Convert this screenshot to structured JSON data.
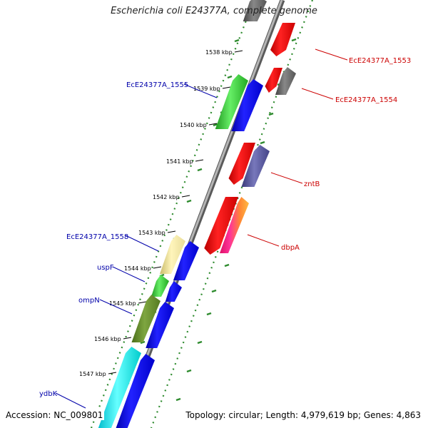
{
  "title": "Escherichia coli E24377A, complete genome",
  "footer": {
    "accession": "Accession: NC_009801",
    "topology": "Topology: circular; Length: 4,979,619 bp; Genes: 4,863"
  },
  "ticks": [
    "1538 kbp",
    "1539 kbp",
    "1540 kbp",
    "1541 kbp",
    "1542 kbp",
    "1543 kbp",
    "1544 kbp",
    "1545 kbp",
    "1546 kbp",
    "1547 kbp"
  ],
  "genes_left": [
    {
      "label": "EcE24377A_1555",
      "color": "#0000aa"
    },
    {
      "label": "EcE24377A_1558",
      "color": "#0000aa"
    },
    {
      "label": "uspF",
      "color": "#0000aa"
    },
    {
      "label": "ompN",
      "color": "#0000aa"
    },
    {
      "label": "ydbK",
      "color": "#0000aa"
    }
  ],
  "genes_right": [
    {
      "label": "EcE24377A_1553",
      "color": "#cc0000"
    },
    {
      "label": "EcE24377A_1554",
      "color": "#cc0000"
    },
    {
      "label": "zntB",
      "color": "#cc0000"
    },
    {
      "label": "dbpA",
      "color": "#cc0000"
    }
  ],
  "colors": {
    "backbone": "#888888",
    "dotted_ring": "#2e8b2e",
    "forward_cds": "#0000ee",
    "reverse_cds": "#ee0000"
  }
}
